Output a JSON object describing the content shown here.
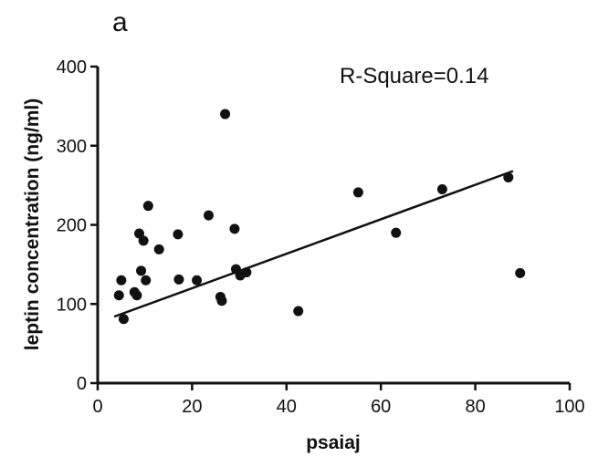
{
  "panel_label": "a",
  "chart_data": {
    "type": "scatter",
    "xlabel": "psaiaj",
    "ylabel": "leptin concentration (ng/ml)",
    "xlim": [
      0,
      100
    ],
    "ylim": [
      0,
      400
    ],
    "xticks": [
      0,
      20,
      40,
      60,
      80,
      100
    ],
    "yticks": [
      0,
      100,
      200,
      300,
      400
    ],
    "annotation": "R-Square=0.14",
    "grid": false,
    "points": [
      {
        "x": 4.5,
        "y": 111
      },
      {
        "x": 5.0,
        "y": 130
      },
      {
        "x": 5.5,
        "y": 81
      },
      {
        "x": 7.8,
        "y": 115
      },
      {
        "x": 8.3,
        "y": 111
      },
      {
        "x": 8.8,
        "y": 189
      },
      {
        "x": 9.2,
        "y": 142
      },
      {
        "x": 9.7,
        "y": 180
      },
      {
        "x": 10.2,
        "y": 130
      },
      {
        "x": 10.7,
        "y": 224
      },
      {
        "x": 13.0,
        "y": 169
      },
      {
        "x": 17.0,
        "y": 188
      },
      {
        "x": 17.2,
        "y": 131
      },
      {
        "x": 21.0,
        "y": 130
      },
      {
        "x": 23.5,
        "y": 212
      },
      {
        "x": 26.0,
        "y": 109
      },
      {
        "x": 26.3,
        "y": 104
      },
      {
        "x": 27.0,
        "y": 340
      },
      {
        "x": 29.0,
        "y": 195
      },
      {
        "x": 29.3,
        "y": 144
      },
      {
        "x": 30.2,
        "y": 136
      },
      {
        "x": 31.5,
        "y": 140
      },
      {
        "x": 42.5,
        "y": 91
      },
      {
        "x": 55.2,
        "y": 241
      },
      {
        "x": 63.2,
        "y": 190
      },
      {
        "x": 73.0,
        "y": 245
      },
      {
        "x": 87.0,
        "y": 260
      },
      {
        "x": 89.5,
        "y": 139
      }
    ],
    "fit_line": {
      "x": [
        3.5,
        88
      ],
      "y": [
        84,
        268
      ]
    }
  }
}
